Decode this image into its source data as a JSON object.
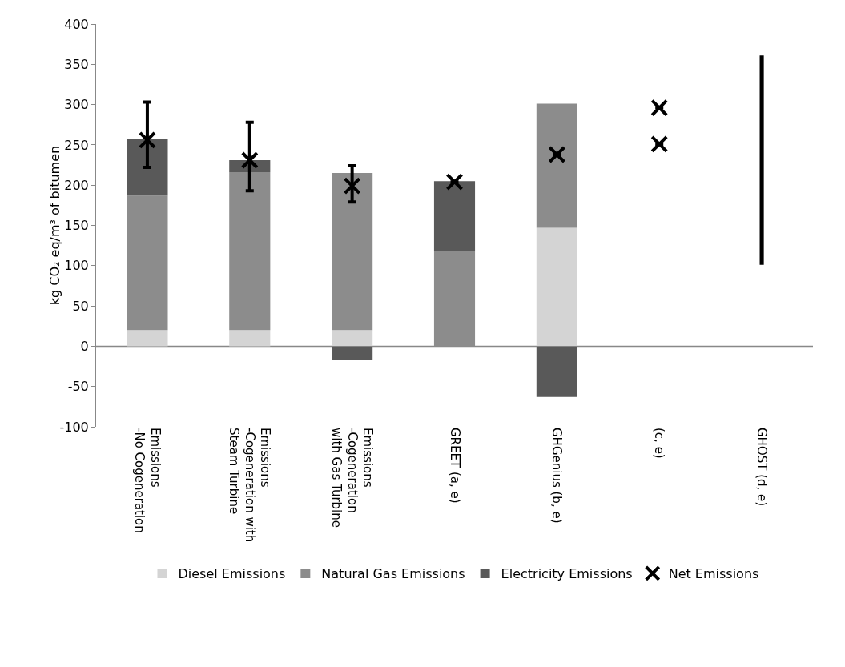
{
  "chart_data": {
    "type": "bar",
    "stacked": true,
    "ylabel": "kg CO₂ eq/m³ of bitumen",
    "categories": [
      "Emissions\n-No Cogeneration",
      "Emissions\n-Cogeneration with\nSteam Turbine",
      "Emissions\n-Cogeneration\nwith Gas Turbine",
      "GREET (a, e)",
      "GHGenius (b, e)",
      "(c, e)",
      "GHOST (d, e)"
    ],
    "series": [
      {
        "name": "Diesel Emissions",
        "color": "#d4d4d4",
        "values": [
          20,
          20,
          20,
          0,
          147,
          null,
          null
        ]
      },
      {
        "name": "Natural Gas Emissions",
        "color": "#8c8c8c",
        "values": [
          167,
          196,
          195,
          118,
          154,
          null,
          null
        ]
      },
      {
        "name": "Electricity Emissions",
        "color": "#595959",
        "values": [
          70,
          15,
          -17,
          87,
          -63,
          null,
          null
        ]
      },
      {
        "name": "Net Emissions",
        "type": "scatter",
        "marker": "cross",
        "color": "#000000",
        "x": [
          "Emissions\n-No Cogeneration",
          "Emissions\n-Cogeneration with\nSteam Turbine",
          "Emissions\n-Cogeneration\nwith Gas Turbine",
          "GREET (a, e)",
          "GHGenius (b, e)",
          "(c, e)",
          "(c, e)"
        ],
        "values": [
          256,
          231,
          199,
          204,
          238,
          296,
          251
        ],
        "errors": [
          [
            222,
            303
          ],
          [
            193,
            278
          ],
          [
            179,
            224
          ],
          null,
          null,
          null,
          null
        ]
      },
      {
        "type": "bar",
        "color": "#000000",
        "values": [
          null,
          null,
          null,
          null,
          null,
          null,
          260
        ],
        "base": [
          null,
          null,
          null,
          null,
          null,
          null,
          101
        ]
      }
    ],
    "ylim": [
      -100,
      400
    ],
    "yticks": [
      -100,
      -50,
      0,
      50,
      100,
      150,
      200,
      250,
      300,
      350,
      400
    ],
    "ref_lines": [
      {
        "axis": "y",
        "value": 0,
        "color": "#888888"
      }
    ],
    "legend": "bottom"
  }
}
